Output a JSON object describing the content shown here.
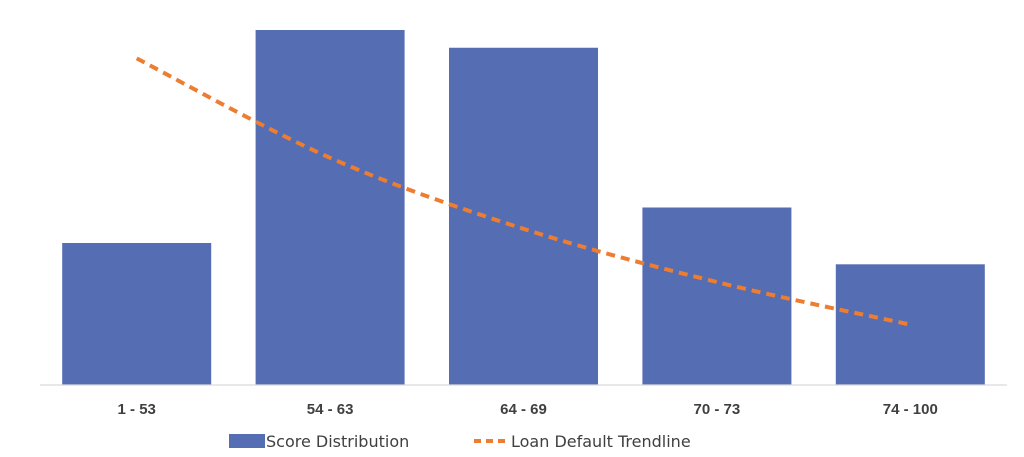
{
  "chart_data": {
    "type": "bar",
    "categories": [
      "1 - 53",
      "54 - 63",
      "64 - 69",
      "70 - 73",
      "74 - 100"
    ],
    "series": [
      {
        "name": "Score Distribution",
        "type": "bar",
        "color": "#556DB3",
        "values": [
          40,
          100,
          95,
          50,
          34
        ]
      },
      {
        "name": "Loan Default Trendline",
        "type": "line",
        "style": "dashed",
        "color": "#ED7D31",
        "values": [
          92,
          64,
          44,
          29,
          17
        ]
      }
    ],
    "title": "",
    "xlabel": "",
    "ylabel": "",
    "ylim": [
      0,
      100
    ],
    "y_axis_visible": false,
    "grid": false,
    "legend": "bottom"
  }
}
